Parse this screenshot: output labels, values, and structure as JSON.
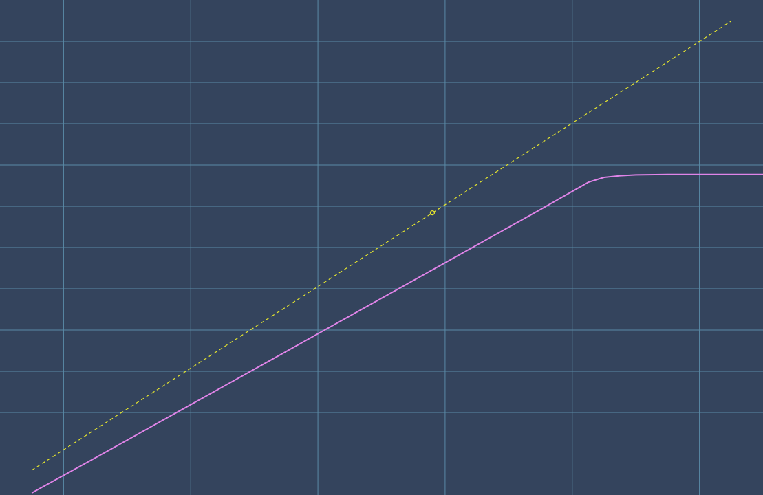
{
  "chart_data": {
    "type": "line",
    "xlim": [
      -6,
      6
    ],
    "ylim": [
      -6,
      6
    ],
    "x_gridlines": [
      -5,
      -3,
      -1,
      1,
      3,
      5
    ],
    "y_gridlines": [
      -4,
      -3,
      -2,
      -1,
      0,
      1,
      2,
      3,
      4,
      5
    ],
    "grid": true,
    "series": [
      {
        "style": "solid",
        "x": [
          -5.5,
          -4.5,
          -3.5,
          -2.5,
          -1.5,
          -0.5,
          0.5,
          1.5,
          2.5,
          3.0,
          3.25,
          3.5,
          3.75,
          4.0,
          4.5,
          5.0,
          5.5,
          6.0
        ],
        "y": [
          -5.95,
          -5.1,
          -4.24,
          -3.38,
          -2.52,
          -1.66,
          -0.8,
          0.06,
          0.92,
          1.36,
          1.58,
          1.7,
          1.74,
          1.76,
          1.77,
          1.77,
          1.77,
          1.77
        ]
      },
      {
        "style": "dashed",
        "x": [
          -5.5,
          -4.5,
          -3.5,
          -2.5,
          -1.5,
          -0.5,
          0.5,
          1.5,
          2.5,
          3.5,
          4.5,
          5.5
        ],
        "y": [
          -5.4,
          -4.41,
          -3.42,
          -2.43,
          -1.44,
          -0.45,
          0.54,
          1.53,
          2.52,
          3.51,
          4.5,
          5.49
        ]
      }
    ],
    "marker": {
      "x": 0.8,
      "y": 0.84
    },
    "colors": {
      "background": "#34445d",
      "grid": "#5a8aa6",
      "solid_line": "#e084e8",
      "dashed_line": "#e6e62e",
      "marker": "#e6e62e"
    }
  }
}
